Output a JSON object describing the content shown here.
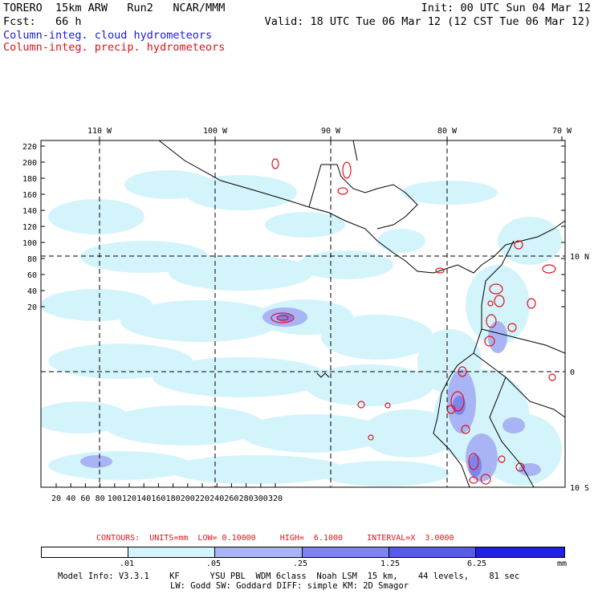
{
  "header": {
    "line1_left": "TORERO  15km ARW   Run2   NCAR/MMM",
    "line1_right": "Init: 00 UTC Sun 04 Mar 12",
    "line2_left": "Fcst:   66 h",
    "line2_right": "Valid: 18 UTC Tue 06 Mar 12 (12 CST Tue 06 Mar 12)",
    "line3": "Column-integ. cloud hydrometeors",
    "line4": "Column-integ. precip. hydrometeors"
  },
  "map": {
    "lon_labels": [
      "110 W",
      "100 W",
      "90 W",
      "80 W",
      "70 W"
    ],
    "lat_labels": [
      "10 N",
      "0",
      "10 S"
    ],
    "y_ticks": [
      "220",
      "200",
      "180",
      "160",
      "140",
      "120",
      "100",
      "80",
      "60",
      "40",
      "20"
    ],
    "x_ticks": [
      "20",
      "40",
      "60",
      "80",
      "100",
      "120",
      "140",
      "160",
      "180",
      "200",
      "220",
      "240",
      "260",
      "280",
      "300",
      "320"
    ],
    "colors": {
      "level1": "#d4f4fb",
      "level2": "#a9b4f4",
      "level3": "#7f83ee",
      "precip_contour": "#e0121b",
      "coast": "#000000"
    }
  },
  "contour_info": "CONTOURS:  UNITS=mm  LOW= 0.10000     HIGH=  6.1000     INTERVAL=X  3.0000",
  "colorbar": {
    "labels": [
      ".01",
      ".05",
      ".25",
      "1.25",
      "6.25"
    ],
    "unit": "mm",
    "colors": [
      "#ffffff",
      "#d4f4fb",
      "#a9b4f4",
      "#7f83ee",
      "#5a5ae8",
      "#2020e0"
    ]
  },
  "model_info": {
    "line1": "Model Info: V3.3.1    KF      YSU PBL  WDM 6class  Noah LSM  15 km,    44 levels,    81 sec",
    "line2": "LW: Godd SW: Goddard DIFF: simple KM: 2D Smagor"
  }
}
